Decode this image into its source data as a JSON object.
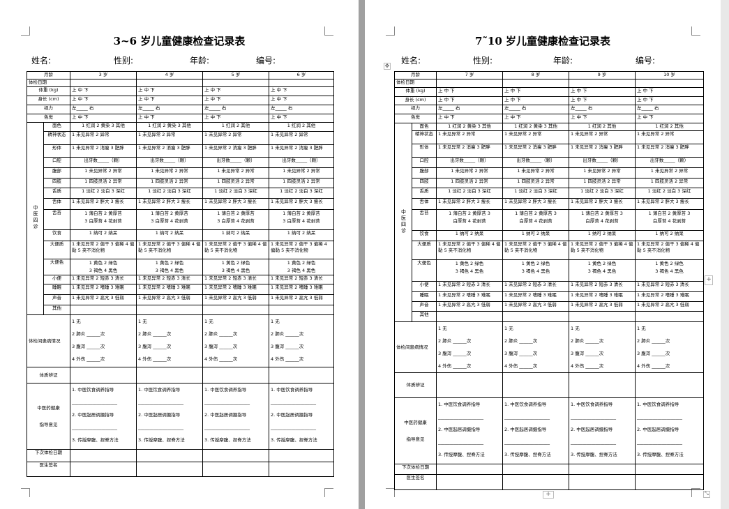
{
  "pages": [
    {
      "title": "3~6 岁儿童健康检查记录表",
      "info": [
        "姓名:",
        "性别:",
        "年龄:",
        "编号:"
      ],
      "header_label": "月龄",
      "ages": [
        "3 岁",
        "4 岁",
        "5 岁",
        "6 岁"
      ],
      "group_label": "中医四诊",
      "rows": [
        {
          "label": "体检日期",
          "cells": [
            "",
            "",
            "",
            ""
          ]
        },
        {
          "label": "体重 (kg)",
          "cells": [
            "上  中  下",
            "上  中  下",
            "上  中  下",
            "上  中  下"
          ]
        },
        {
          "label": "身长 (cm)",
          "cells": [
            "上  中  下",
            "上  中  下",
            "上  中  下",
            "上  中  下"
          ]
        },
        {
          "label": "视力",
          "cells": [
            "左_____        右",
            "左_____        右",
            "左_____        右",
            "左_____        右"
          ]
        },
        {
          "label": "色觉",
          "cells": [
            "上  中  下",
            "上  中  下",
            "上  中  下",
            "上  中  下"
          ]
        },
        {
          "label": "面色",
          "cells": [
            "1 红润 2 黄染 3 其他",
            "1 红润 2 黄染 3 其他",
            "1 红润   2 其他",
            "1 红润   2 其他"
          ]
        },
        {
          "label": "精神状态",
          "cells": [
            "1 未见异常   2 异常",
            "1 未见异常   2 异常",
            "1 未见异常   2 异常",
            "1 未见异常   2 异常"
          ]
        },
        {
          "label": "形体",
          "cells": [
            "1 未见异常 2 消瘦 3 肥胖",
            "1 未见异常 2 消瘦 3 肥胖",
            "1 未见异常 2 消瘦 3 肥胖",
            "1 未见异常 2 消瘦 3 肥胖"
          ]
        },
        {
          "label": "口腔",
          "cells": [
            "出牙数_____（颗）",
            "出牙数_____（颗）",
            "出牙数_____（颗）",
            "出牙数_____（颗）"
          ]
        },
        {
          "label": "腹部",
          "cells": [
            "1 未见异常 2 异常",
            "1 未见异常 2 异常",
            "1 未见异常 2 异常",
            "1 未见异常 2 异常"
          ]
        },
        {
          "label": "四肢",
          "cells": [
            "1 四肢灵活 2 异常",
            "1 四肢灵活 2 异常",
            "1 四肢灵活 2 异常",
            "1 四肢灵活 2 异常"
          ]
        },
        {
          "label": "舌质",
          "cells": [
            "1 淡红 2 淡白 3 深红",
            "1 淡红 2 淡白 3 深红",
            "1 淡红 2 淡白 3 深红",
            "1 淡红 2 淡白 3 深红"
          ]
        },
        {
          "label": "舌体",
          "cells": [
            "1 未见异常 2 胖大 3 瘦长",
            "1 未见异常 2 胖大 3 瘦长",
            "1 未见异常 2 胖大 3 瘦长",
            "1 未见异常 2 胖大 3 瘦长"
          ]
        },
        {
          "label": "舌苔",
          "cells": [
            "1 薄白苔     2 黄厚苔\n3 白厚苔     4 花剥苔",
            "1 薄白苔     2 黄厚苔\n3 白厚苔     4 花剥苔",
            "1 薄白苔     2 黄厚苔\n3 白厚苔     4 花剥苔",
            "1 薄白苔     2 黄厚苔\n3 白厚苔     4 花剥苔"
          ]
        },
        {
          "label": "饮食",
          "cells": [
            "1 纳可     2 纳呆",
            "1 纳可     2 纳呆",
            "1 纳可     2 纳呆",
            "1 纳可     2 纳呆"
          ]
        },
        {
          "label": "大便质",
          "cells": [
            "1 未见异常 2 偏干 3 偏稀 4 偏黏  5 夹不消化物",
            "1 未见异常 2 偏干 3 偏稀 4 偏黏  5 夹不消化物",
            "1 未见异常 2 偏干 3 偏稀 4 偏黏  5 夹不消化物",
            "1 未见异常 2 偏干 3 偏稀 4 偏黏  5 夹不消化物"
          ]
        },
        {
          "label": "大便色",
          "cells": [
            "1 黄色       2 绿色\n3 褐色       4 黑色",
            "1 黄色       2 绿色\n3 褐色       4 黑色",
            "1 黄色       2 绿色\n3 褐色       4 黑色",
            "1 黄色       2 绿色\n3 褐色       4 黑色"
          ]
        },
        {
          "label": "小便",
          "cells": [
            "1 未见异常 2 短赤 3 清长",
            "1 未见异常 2 短赤 3 清长",
            "1 未见异常 2 短赤 3 清长",
            "1 未见异常 2 短赤 3 清长"
          ]
        },
        {
          "label": "睡眠",
          "cells": [
            "1 未见异常 2 嗜睡 3 难眠",
            "1 未见异常 2 嗜睡 3 难眠",
            "1 未见异常 2 嗜睡 3 难眠",
            "1 未见异常 2 嗜睡 3 难眠"
          ]
        },
        {
          "label": "声音",
          "cells": [
            "1 未见异常 2 高亢 3 低弱",
            "1 未见异常 2 高亢 3 低弱",
            "1 未见异常 2 高亢 3 低弱",
            "1 未见异常 2 高亢 3 低弱"
          ]
        },
        {
          "label": "其他",
          "cells": [
            "",
            "",
            "",
            ""
          ]
        },
        {
          "label": "体检间患病情况",
          "cells": [
            "1 无\n2 肺炎 ______次\n3 腹泻 ______次\n4 外伤 ______次",
            "1 无\n2 肺炎 ______次\n3 腹泻 ______次\n4 外伤 ______次",
            "1 无\n2 肺炎 ______次\n3 腹泻 ______次\n4 外伤 ______次",
            "1 无\n2 肺炎 ______次\n3 腹泻 ______次\n4 外伤 ______次"
          ]
        },
        {
          "label": "体质辨证",
          "cells": [
            "",
            "",
            "",
            ""
          ]
        },
        {
          "label": "中医药健康\n指导意见",
          "cells": [
            "1. 中医饮食调养指导\n____________________\n2. 中医起居调摄指导\n____________________\n3. 传授摩腹、捏脊方法",
            "1. 中医饮食调养指导\n____________________\n2. 中医起居调摄指导\n____________________\n3. 传授摩腹、捏脊方法",
            "1. 中医饮食调养指导\n____________________\n2. 中医起居调摄指导\n____________________\n3. 传授摩腹、捏脊方法",
            "1. 中医饮食调养指导\n____________________\n2. 中医起居调摄指导\n____________________\n3. 传授摩腹、捏脊方法"
          ]
        },
        {
          "label": "下次体检日期",
          "cells": [
            "",
            "",
            "",
            ""
          ]
        },
        {
          "label": "医生签名",
          "cells": [
            "",
            "",
            "",
            ""
          ]
        }
      ]
    },
    {
      "title": "7˜10 岁儿童健康检查记录表",
      "info": [
        "姓名:",
        "性别:",
        "年龄:",
        "编号:"
      ],
      "header_label": "月龄",
      "ages": [
        "7 岁",
        "8 岁",
        "9 岁",
        "10 岁"
      ],
      "group_label": "中医四诊",
      "rows": [
        {
          "label": "体检日期",
          "cells": [
            "",
            "",
            "",
            ""
          ]
        },
        {
          "label": "体重 (kg)",
          "cells": [
            "上  中  下",
            "上  中  下",
            "上  中  下",
            "上  中  下"
          ]
        },
        {
          "label": "身长 (cm)",
          "cells": [
            "上  中  下",
            "上  中  下",
            "上  中  下",
            "上  中  下"
          ]
        },
        {
          "label": "视力",
          "cells": [
            "左_____        右",
            "左_____        右",
            "左_____        右",
            "左_____        右"
          ]
        },
        {
          "label": "色觉",
          "cells": [
            "上  中  下",
            "上  中  下",
            "上  中  下",
            "上  中  下"
          ]
        },
        {
          "label": "面色",
          "cells": [
            "1 红润 2 黄染 3 其他",
            "1 红润 2 黄染 3 其他",
            "1 红润   2 其他",
            "1 红润   2 其他"
          ]
        },
        {
          "label": "精神状态",
          "cells": [
            "1 未见异常   2 异常",
            "1 未见异常   2 异常",
            "1 未见异常   2 异常",
            "1 未见异常   2 异常"
          ]
        },
        {
          "label": "形体",
          "cells": [
            "1 未见异常 2 消瘦 3 肥胖",
            "1 未见异常 2 消瘦 3 肥胖",
            "1 未见异常 2 消瘦 3 肥胖",
            "1 未见异常 2 消瘦 3 肥胖"
          ]
        },
        {
          "label": "口腔",
          "cells": [
            "出牙数_____（颗）",
            "出牙数_____（颗）",
            "出牙数_____（颗）",
            "出牙数_____（颗）"
          ]
        },
        {
          "label": "腹部",
          "cells": [
            "1 未见异常 2 异常",
            "1 未见异常 2 异常",
            "1 未见异常 2 异常",
            "1 未见异常 2 异常"
          ]
        },
        {
          "label": "四肢",
          "cells": [
            "1 四肢灵活 2 异常",
            "1 四肢灵活 2 异常",
            "1 四肢灵活 2 异常",
            "1 四肢灵活 2 异常"
          ]
        },
        {
          "label": "舌质",
          "cells": [
            "1 淡红 2 淡白 3 深红",
            "1 淡红 2 淡白 3 深红",
            "1 淡红 2 淡白 3 深红",
            "1 淡红 2 淡白 3 深红"
          ]
        },
        {
          "label": "舌体",
          "cells": [
            "1 未见异常 2 胖大 3 瘦长",
            "1 未见异常 2 胖大 3 瘦长",
            "1 未见异常 2 胖大 3 瘦长",
            "1 未见异常 2 胖大 3 瘦长"
          ]
        },
        {
          "label": "舌苔",
          "cells": [
            "1 薄白苔     2 黄厚苔  3\n白厚苔     4 花剥苔",
            "1 薄白苔     2 黄厚苔  3\n白厚苔     4 花剥苔",
            "1 薄白苔     2 黄厚苔  3\n白厚苔     4 花剥苔",
            "1 薄白苔     2 黄厚苔  3\n白厚苔     4 花剥苔"
          ]
        },
        {
          "label": "饮食",
          "cells": [
            "1 纳可     2 纳呆",
            "1 纳可     2 纳呆",
            "1 纳可     2 纳呆",
            "1 纳可     2 纳呆"
          ]
        },
        {
          "label": "大便质",
          "cells": [
            "1 未见异常 2 偏干 3 偏稀 4 偏黏  5 夹不消化物",
            "1 未见异常 2 偏干 3 偏稀 4 偏黏  5 夹不消化物",
            "1 未见异常 2 偏干 3 偏稀 4 偏黏  5 夹不消化物",
            "1 未见异常 2 偏干 3 偏稀 4 偏黏  5 夹不消化物"
          ]
        },
        {
          "label": "大便色",
          "cells": [
            "1 黄色       2 绿色\n3 褐色       4 黑色",
            "1 黄色       2 绿色\n3 褐色       4 黑色",
            "1 黄色       2 绿色\n3 褐色       4 黑色",
            "1 黄色       2 绿色\n3 褐色       4 黑色"
          ]
        },
        {
          "label": "小便",
          "cells": [
            "1 未见异常 2 短赤 3 清长",
            "1 未见异常 2 短赤 3 清长",
            "1 未见异常 2 短赤 3 清长",
            "1 未见异常 2 短赤 3 清长"
          ]
        },
        {
          "label": "睡眠",
          "cells": [
            "1 未见异常 2 嗜睡 3 难眠",
            "1 未见异常 2 嗜睡 3 难眠",
            "1 未见异常 2 嗜睡 3 难眠",
            "1 未见异常 2 嗜睡 3 难眠"
          ]
        },
        {
          "label": "声音",
          "cells": [
            "1 未见异常 2 高亢 3 低弱",
            "1 未见异常 2 高亢 3 低弱",
            "1 未见异常 2 高亢 3 低弱",
            "1 未见异常 2 高亢 3 低弱"
          ]
        },
        {
          "label": "其他",
          "cells": [
            "",
            "",
            "",
            ""
          ]
        },
        {
          "label": "体检间患病情况",
          "cells": [
            "1 无\n2 肺炎 ______次\n3 腹泻 ______次\n4 外伤 ______次",
            "1 无\n2 肺炎 ______次\n3 腹泻 ______次\n4 外伤 ______次",
            "1 无\n2 肺炎 ______次\n3 腹泻 ______次\n4 外伤 ______次",
            "1 无\n2 肺炎 ______次\n3 腹泻 ______次\n4 外伤 ______次"
          ]
        },
        {
          "label": "体质辨证",
          "cells": [
            "",
            "",
            "",
            ""
          ]
        },
        {
          "label": "中医药健康\n指导意见",
          "cells": [
            "1. 中医饮食调养指导\n____________________\n2. 中医起居调摄指导\n____________________\n3. 传授摩腹、捏脊方法",
            "1. 中医饮食调养指导\n____________________\n2. 中医起居调摄指导\n____________________\n3. 传授摩腹、捏脊方法",
            "1. 中医饮食调养指导\n____________________\n2. 中医起居调摄指导\n____________________\n3. 传授摩腹、捏脊方法",
            "1. 中医饮食调养指导\n____________________\n2. 中医起居调摄指导\n____________________\n3. 传授摩腹、捏脊方法"
          ]
        },
        {
          "label": "下次体检日期",
          "cells": [
            "",
            "",
            "",
            ""
          ]
        },
        {
          "label": "医生签名",
          "cells": [
            "",
            "",
            "",
            ""
          ]
        }
      ]
    }
  ],
  "controls": {
    "expand_icon": "plus-icon",
    "move_handle_icon": "move-icon",
    "resize_icon": "resize-icon"
  }
}
